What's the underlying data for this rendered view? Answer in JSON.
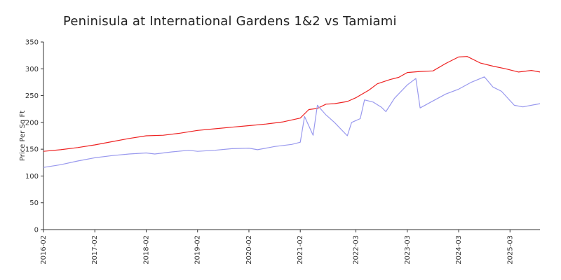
{
  "chart_data": {
    "type": "line",
    "title": "Peninisula at International Gardens 1&2 vs Tamiami",
    "xlabel": "",
    "ylabel": "Price Per Sq Ft",
    "ylim": [
      0,
      350
    ],
    "yticks": [
      0,
      50,
      100,
      150,
      200,
      250,
      300,
      350
    ],
    "xlim": [
      "2016-02",
      "2025-10"
    ],
    "xticks": [
      "2016-02",
      "2017-02",
      "2018-02",
      "2019-02",
      "2020-02",
      "2021-02",
      "2022-03",
      "2023-03",
      "2024-03",
      "2025-03"
    ],
    "grid": false,
    "legend": "none",
    "series": [
      {
        "color": "#ee2222",
        "points": [
          [
            "2016-02",
            146
          ],
          [
            "2016-06",
            149
          ],
          [
            "2016-10",
            153
          ],
          [
            "2017-02",
            158
          ],
          [
            "2017-06",
            164
          ],
          [
            "2017-10",
            170
          ],
          [
            "2018-02",
            175
          ],
          [
            "2018-06",
            176
          ],
          [
            "2018-10",
            180
          ],
          [
            "2019-02",
            185
          ],
          [
            "2019-06",
            188
          ],
          [
            "2019-10",
            191
          ],
          [
            "2020-02",
            194
          ],
          [
            "2020-06",
            197
          ],
          [
            "2020-10",
            201
          ],
          [
            "2021-02",
            208
          ],
          [
            "2021-04",
            224
          ],
          [
            "2021-06",
            226
          ],
          [
            "2021-08",
            234
          ],
          [
            "2021-10",
            235
          ],
          [
            "2022-01",
            239
          ],
          [
            "2022-03",
            246
          ],
          [
            "2022-06",
            260
          ],
          [
            "2022-08",
            272
          ],
          [
            "2022-11",
            280
          ],
          [
            "2023-01",
            284
          ],
          [
            "2023-03",
            293
          ],
          [
            "2023-06",
            295
          ],
          [
            "2023-09",
            296
          ],
          [
            "2023-12",
            310
          ],
          [
            "2024-03",
            322
          ],
          [
            "2024-05",
            323
          ],
          [
            "2024-08",
            311
          ],
          [
            "2024-11",
            305
          ],
          [
            "2025-02",
            300
          ],
          [
            "2025-05",
            294
          ],
          [
            "2025-08",
            297
          ],
          [
            "2025-10",
            294
          ]
        ]
      },
      {
        "color": "#9999ee",
        "points": [
          [
            "2016-02",
            116
          ],
          [
            "2016-06",
            121
          ],
          [
            "2016-10",
            128
          ],
          [
            "2017-02",
            134
          ],
          [
            "2017-06",
            138
          ],
          [
            "2017-10",
            141
          ],
          [
            "2018-02",
            143
          ],
          [
            "2018-04",
            141
          ],
          [
            "2018-08",
            145
          ],
          [
            "2018-12",
            148
          ],
          [
            "2019-02",
            146
          ],
          [
            "2019-06",
            148
          ],
          [
            "2019-10",
            151
          ],
          [
            "2020-02",
            152
          ],
          [
            "2020-04",
            149
          ],
          [
            "2020-08",
            155
          ],
          [
            "2020-12",
            159
          ],
          [
            "2021-02",
            163
          ],
          [
            "2021-03",
            211
          ],
          [
            "2021-05",
            176
          ],
          [
            "2021-06",
            232
          ],
          [
            "2021-08",
            214
          ],
          [
            "2021-10",
            200
          ],
          [
            "2022-01",
            175
          ],
          [
            "2022-02",
            200
          ],
          [
            "2022-04",
            207
          ],
          [
            "2022-05",
            242
          ],
          [
            "2022-07",
            238
          ],
          [
            "2022-09",
            228
          ],
          [
            "2022-10",
            220
          ],
          [
            "2022-12",
            245
          ],
          [
            "2023-03",
            270
          ],
          [
            "2023-05",
            282
          ],
          [
            "2023-06",
            227
          ],
          [
            "2023-09",
            240
          ],
          [
            "2023-12",
            253
          ],
          [
            "2024-03",
            262
          ],
          [
            "2024-06",
            275
          ],
          [
            "2024-09",
            285
          ],
          [
            "2024-11",
            266
          ],
          [
            "2025-01",
            258
          ],
          [
            "2025-04",
            232
          ],
          [
            "2025-06",
            229
          ],
          [
            "2025-10",
            235
          ]
        ]
      }
    ]
  }
}
